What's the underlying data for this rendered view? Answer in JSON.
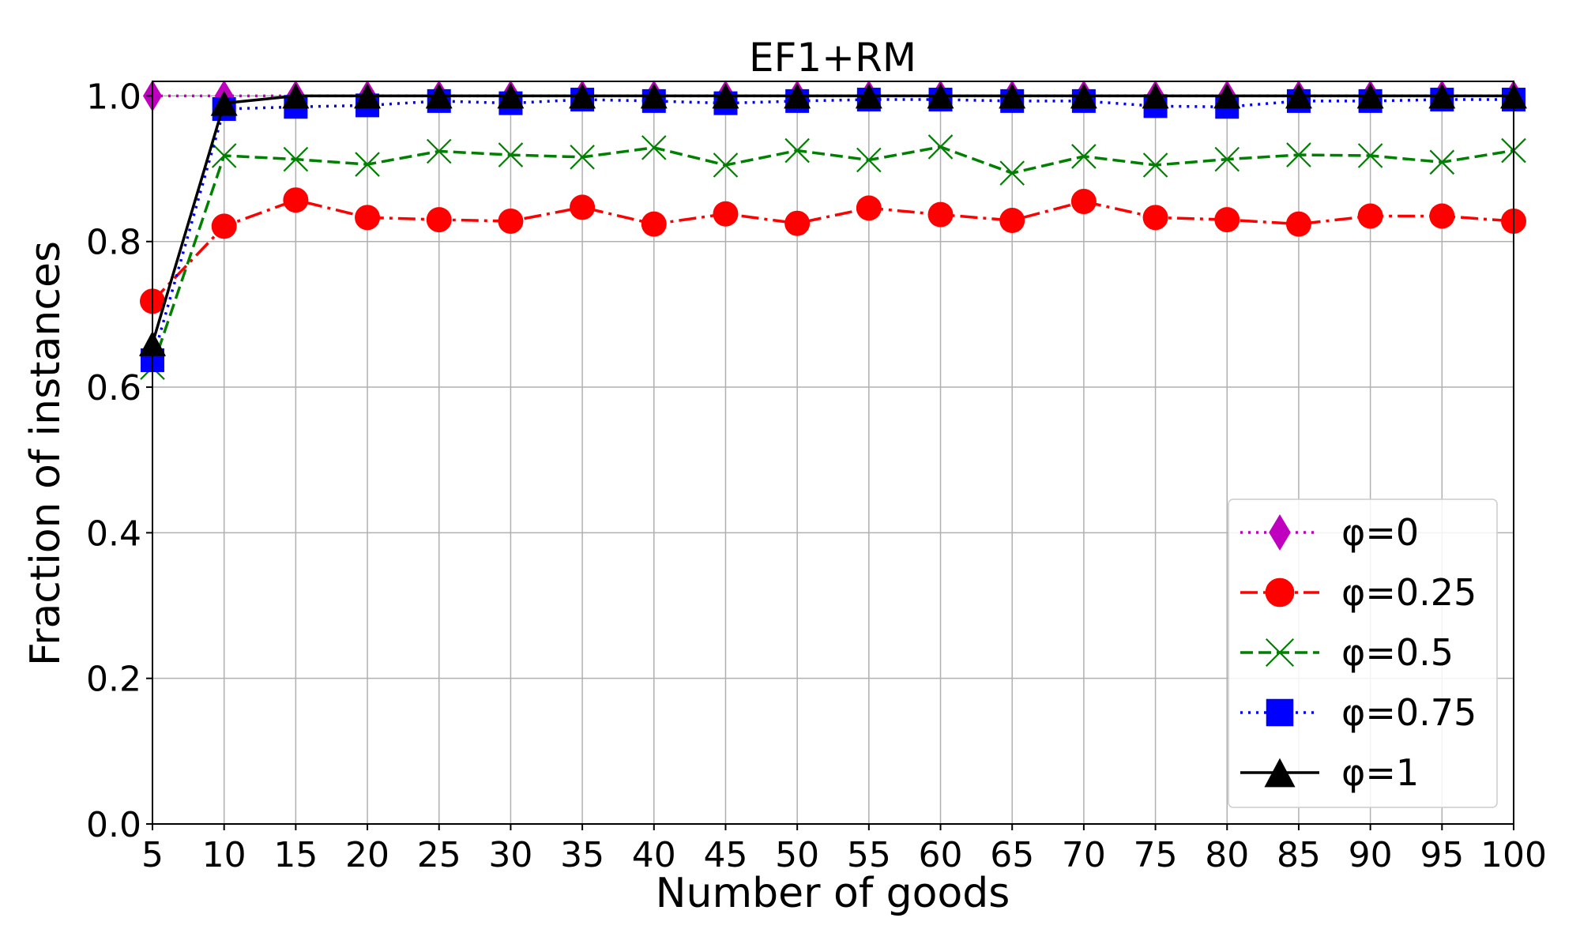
{
  "chart_data": {
    "type": "line",
    "title": "EF1+RM",
    "xlabel": "Number of goods",
    "ylabel": "Fraction of instances",
    "x": [
      5,
      10,
      15,
      20,
      25,
      30,
      35,
      40,
      45,
      50,
      55,
      60,
      65,
      70,
      75,
      80,
      85,
      90,
      95,
      100
    ],
    "xlim": [
      5,
      100
    ],
    "ylim": [
      0.0,
      1.02
    ],
    "xticks": [
      "5",
      "10",
      "15",
      "20",
      "25",
      "30",
      "35",
      "40",
      "45",
      "50",
      "55",
      "60",
      "65",
      "70",
      "75",
      "80",
      "85",
      "90",
      "95",
      "100"
    ],
    "yticks": [
      "0.0",
      "0.2",
      "0.4",
      "0.6",
      "0.8",
      "1.0"
    ],
    "grid": true,
    "legend_position": "lower-right",
    "series": [
      {
        "name": "φ=0",
        "color": "#bf00bf",
        "marker": "diamond",
        "linestyle": "dotted",
        "values": [
          1.0,
          1.0,
          1.0,
          1.0,
          1.0,
          1.0,
          1.0,
          1.0,
          1.0,
          1.0,
          1.0,
          1.0,
          1.0,
          1.0,
          1.0,
          1.0,
          1.0,
          1.0,
          1.0,
          1.0
        ]
      },
      {
        "name": "φ=0.25",
        "color": "#ff0000",
        "marker": "circle",
        "linestyle": "dashdot",
        "values": [
          0.718,
          0.821,
          0.857,
          0.833,
          0.83,
          0.828,
          0.847,
          0.824,
          0.838,
          0.825,
          0.846,
          0.837,
          0.829,
          0.855,
          0.833,
          0.83,
          0.824,
          0.835,
          0.835,
          0.828
        ]
      },
      {
        "name": "φ=0.5",
        "color": "#008000",
        "marker": "x",
        "linestyle": "dashed",
        "values": [
          0.627,
          0.918,
          0.913,
          0.906,
          0.924,
          0.919,
          0.916,
          0.929,
          0.905,
          0.925,
          0.912,
          0.93,
          0.894,
          0.917,
          0.905,
          0.913,
          0.919,
          0.918,
          0.909,
          0.925
        ]
      },
      {
        "name": "φ=0.75",
        "color": "#0000ff",
        "marker": "square",
        "linestyle": "dotted",
        "values": [
          0.637,
          0.982,
          0.985,
          0.987,
          0.993,
          0.99,
          0.995,
          0.993,
          0.99,
          0.993,
          0.995,
          0.995,
          0.993,
          0.993,
          0.986,
          0.985,
          0.993,
          0.993,
          0.995,
          0.995
        ]
      },
      {
        "name": "φ=1",
        "color": "#000000",
        "marker": "triangle",
        "linestyle": "solid",
        "values": [
          0.66,
          0.99,
          1.0,
          1.0,
          1.0,
          1.0,
          1.0,
          1.0,
          1.0,
          1.0,
          1.0,
          1.0,
          1.0,
          1.0,
          1.0,
          1.0,
          1.0,
          1.0,
          1.0,
          1.0
        ]
      }
    ]
  }
}
